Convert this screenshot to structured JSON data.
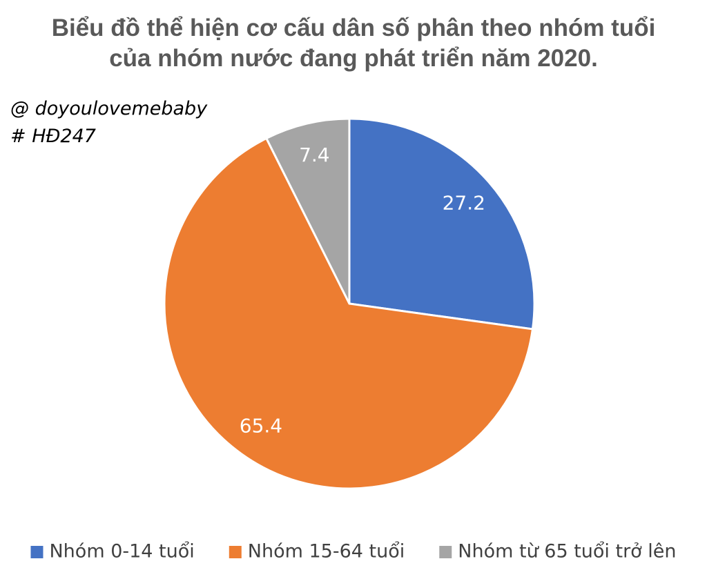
{
  "chart_data": {
    "type": "pie",
    "title": [
      "Biểu đồ thể hiện cơ cấu dân số phân theo nhóm tuổi",
      "của nhóm nước đang phát triển năm 2020."
    ],
    "annotations": [
      "@ doyoulovemebaby",
      "# HĐ247"
    ],
    "categories": [
      "Nhóm 0-14 tuổi",
      "Nhóm 15-64 tuổi",
      "Nhóm từ 65 tuổi trở lên"
    ],
    "values": [
      27.2,
      65.4,
      7.4
    ],
    "colors": [
      "#4472c4",
      "#ed7d31",
      "#a5a5a5"
    ],
    "legend": "bottom"
  }
}
